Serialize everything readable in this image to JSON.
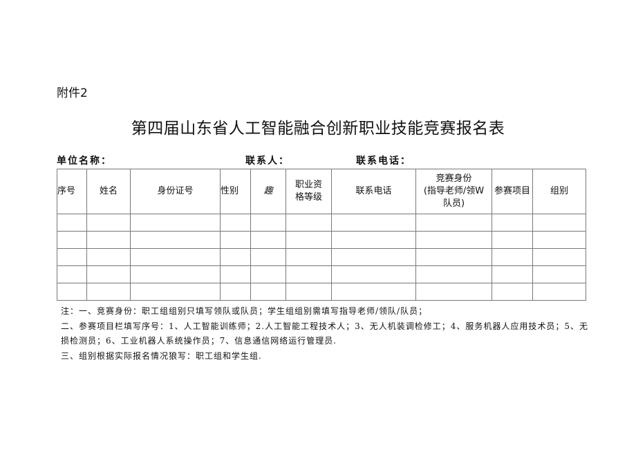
{
  "attachment": "附件2",
  "title": "第四届山东省人工智能融合创新职业技能竞赛报名表",
  "info": {
    "unit": "单位名称：",
    "contact": "联系人：",
    "phone": "联系电话："
  },
  "table": {
    "headers": [
      "序号",
      "姓名",
      "身份证号",
      "性别",
      "趣",
      "职业资格等级",
      "联系电话",
      "竞赛身份（指导老师/领W队员）",
      "参赛项目",
      "组别"
    ],
    "header_lines": {
      "qual": [
        "职业资",
        "格等级"
      ],
      "role": [
        "竞赛身份",
        "(指导老师/领W",
        "队员)"
      ]
    },
    "rows": 5
  },
  "notes": [
    "注：一、竞赛身份：职工组组别只填写领队或队员；学生组组别需填写指导老师/领队/队员；",
    "二、参赛项目栏填写序号：1、人工智能训练师；2.人工智能工程技术人；3、无人机装调检修工；4、服务机器人应用技术员；5、无",
    "损检测员；6、工业机器人系统操作员；7、信息通信网络运行管理员.",
    "三、组别根据实际报名情况狼写：职工组和学生组."
  ]
}
